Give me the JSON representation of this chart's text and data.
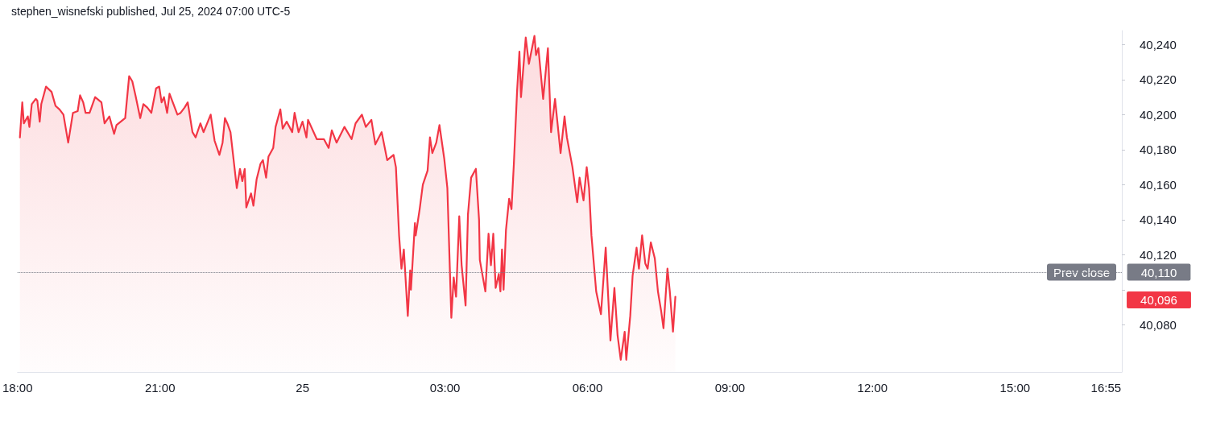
{
  "chart_data": {
    "type": "area",
    "title": "stephen_wisnefski published, Jul 25, 2024 07:00 UTC-5",
    "x": [
      "2024-07-24T18:03",
      "2024-07-24T18:06",
      "2024-07-24T18:08",
      "2024-07-24T18:13",
      "2024-07-24T18:15",
      "2024-07-24T18:18",
      "2024-07-24T18:23",
      "2024-07-24T18:25",
      "2024-07-24T18:28",
      "2024-07-24T18:30",
      "2024-07-24T18:36",
      "2024-07-24T18:43",
      "2024-07-24T18:48",
      "2024-07-24T18:53",
      "2024-07-24T18:58",
      "2024-07-24T19:04",
      "2024-07-24T19:10",
      "2024-07-24T19:16",
      "2024-07-24T19:19",
      "2024-07-24T19:23",
      "2024-07-24T19:26",
      "2024-07-24T19:31",
      "2024-07-24T19:38",
      "2024-07-24T19:46",
      "2024-07-24T19:50",
      "2024-07-24T19:56",
      "2024-07-24T20:02",
      "2024-07-24T20:05",
      "2024-07-24T20:16",
      "2024-07-24T20:21",
      "2024-07-24T20:25",
      "2024-07-24T20:29",
      "2024-07-24T20:35",
      "2024-07-24T20:39",
      "2024-07-24T20:44",
      "2024-07-24T20:49",
      "2024-07-24T20:55",
      "2024-07-24T20:59",
      "2024-07-24T21:02",
      "2024-07-24T21:05",
      "2024-07-24T21:09",
      "2024-07-24T21:12",
      "2024-07-24T21:17",
      "2024-07-24T21:22",
      "2024-07-24T21:26",
      "2024-07-24T21:31",
      "2024-07-24T21:35",
      "2024-07-24T21:41",
      "2024-07-24T21:45",
      "2024-07-24T21:51",
      "2024-07-24T21:55",
      "2024-07-24T22:04",
      "2024-07-24T22:09",
      "2024-07-24T22:15",
      "2024-07-24T22:19",
      "2024-07-24T22:22",
      "2024-07-24T22:25",
      "2024-07-24T22:29",
      "2024-07-24T22:32",
      "2024-07-24T22:37",
      "2024-07-24T22:41",
      "2024-07-24T22:44",
      "2024-07-24T22:47",
      "2024-07-24T22:49",
      "2024-07-24T22:55",
      "2024-07-24T22:58",
      "2024-07-24T23:02",
      "2024-07-24T23:07",
      "2024-07-24T23:10",
      "2024-07-24T23:14",
      "2024-07-24T23:17",
      "2024-07-24T23:23",
      "2024-07-24T23:26",
      "2024-07-24T23:32",
      "2024-07-24T23:35",
      "2024-07-24T23:40",
      "2024-07-24T23:47",
      "2024-07-24T23:50",
      "2024-07-24T23:55",
      "2024-07-25T00:00",
      "2024-07-25T00:05",
      "2024-07-25T00:07",
      "2024-07-25T00:18",
      "2024-07-25T00:27",
      "2024-07-25T00:33",
      "2024-07-25T00:37",
      "2024-07-25T00:43",
      "2024-07-25T00:53",
      "2024-07-25T01:02",
      "2024-07-25T01:07",
      "2024-07-25T01:15",
      "2024-07-25T01:20",
      "2024-07-25T01:27",
      "2024-07-25T01:32",
      "2024-07-25T01:40",
      "2024-07-25T01:47",
      "2024-07-25T01:55",
      "2024-07-25T01:58",
      "2024-07-25T02:02",
      "2024-07-25T02:05",
      "2024-07-25T02:08",
      "2024-07-25T02:13",
      "2024-07-25T02:16",
      "2024-07-25T02:17",
      "2024-07-25T02:22",
      "2024-07-25T02:23",
      "2024-07-25T02:28",
      "2024-07-25T02:32",
      "2024-07-25T02:38",
      "2024-07-25T02:41",
      "2024-07-25T02:44",
      "2024-07-25T02:49",
      "2024-07-25T02:53",
      "2024-07-25T02:59",
      "2024-07-25T03:03",
      "2024-07-25T03:08",
      "2024-07-25T03:11",
      "2024-07-25T03:14",
      "2024-07-25T03:18",
      "2024-07-25T03:21",
      "2024-07-25T03:26",
      "2024-07-25T03:29",
      "2024-07-25T03:33",
      "2024-07-25T03:39",
      "2024-07-25T03:43",
      "2024-07-25T03:44",
      "2024-07-25T03:51",
      "2024-07-25T03:55",
      "2024-07-25T03:58",
      "2024-07-25T04:01",
      "2024-07-25T04:04",
      "2024-07-25T04:08",
      "2024-07-25T04:10",
      "2024-07-25T04:12",
      "2024-07-25T04:14",
      "2024-07-25T04:17",
      "2024-07-25T04:21",
      "2024-07-25T04:24",
      "2024-07-25T04:27",
      "2024-07-25T04:31",
      "2024-07-25T04:34",
      "2024-07-25T04:36",
      "2024-07-25T04:39",
      "2024-07-25T04:42",
      "2024-07-25T04:46",
      "2024-07-25T04:53",
      "2024-07-25T04:55",
      "2024-07-25T04:58",
      "2024-07-25T05:04",
      "2024-07-25T05:10",
      "2024-07-25T05:14",
      "2024-07-25T05:19",
      "2024-07-25T05:26",
      "2024-07-25T05:31",
      "2024-07-25T05:34",
      "2024-07-25T05:41",
      "2024-07-25T05:47",
      "2024-07-25T05:50",
      "2024-07-25T05:55",
      "2024-07-25T05:59",
      "2024-07-25T06:02",
      "2024-07-25T06:05",
      "2024-07-25T06:11",
      "2024-07-25T06:17",
      "2024-07-25T06:23",
      "2024-07-25T06:29",
      "2024-07-25T06:34",
      "2024-07-25T06:38",
      "2024-07-25T06:42",
      "2024-07-25T06:47",
      "2024-07-25T06:49",
      "2024-07-25T06:54",
      "2024-07-25T06:57",
      "2024-07-25T07:02",
      "2024-07-25T07:05",
      "2024-07-25T07:09",
      "2024-07-25T07:13",
      "2024-07-25T07:16",
      "2024-07-25T07:20",
      "2024-07-25T07:25",
      "2024-07-25T07:29",
      "2024-07-25T07:33",
      "2024-07-25T07:36",
      "2024-07-25T07:41",
      "2024-07-25T07:44",
      "2024-07-25T07:48",
      "2024-07-25T07:51"
    ],
    "values": [
      40187,
      40207,
      40195,
      40199,
      40193,
      40206,
      40209,
      40208,
      40196,
      40206,
      40216,
      40213,
      40205,
      40203,
      40200,
      40184,
      40201,
      40202,
      40211,
      40207,
      40201,
      40201,
      40210,
      40207,
      40195,
      40199,
      40189,
      40194,
      40198,
      40222,
      40219,
      40211,
      40198,
      40206,
      40204,
      40201,
      40215,
      40216,
      40207,
      40210,
      40201,
      40212,
      40206,
      40200,
      40201,
      40204,
      40207,
      40190,
      40187,
      40195,
      40190,
      40200,
      40185,
      40177,
      40184,
      40198,
      40195,
      40190,
      40178,
      40158,
      40169,
      40162,
      40169,
      40147,
      40155,
      40148,
      40163,
      40172,
      40174,
      40164,
      40176,
      40181,
      40193,
      40203,
      40192,
      40196,
      40190,
      40201,
      40190,
      40196,
      40187,
      40197,
      40186,
      40186,
      40181,
      40191,
      40184,
      40193,
      40186,
      40195,
      40200,
      40193,
      40197,
      40183,
      40190,
      40174,
      40177,
      40170,
      40131,
      40112,
      40123,
      40085,
      40111,
      40100,
      40138,
      40131,
      40146,
      40160,
      40168,
      40187,
      40178,
      40184,
      40194,
      40175,
      40158,
      40084,
      40107,
      40096,
      40142,
      40114,
      40091,
      40143,
      40164,
      40169,
      40140,
      40117,
      40099,
      40132,
      40114,
      40132,
      40101,
      40109,
      40099,
      40123,
      40100,
      40134,
      40152,
      40146,
      40172,
      40213,
      40236,
      40210,
      40227,
      40244,
      40229,
      40245,
      40234,
      40238,
      40209,
      40238,
      40190,
      40209,
      40178,
      40199,
      40187,
      40170,
      40150,
      40164,
      40151,
      40170,
      40158,
      40131,
      40099,
      40086,
      40124,
      40071,
      40101,
      40074,
      40060,
      40076,
      40060,
      40085,
      40108,
      40124,
      40112,
      40131,
      40115,
      40112,
      40127,
      40118,
      40099,
      40088,
      40078,
      40112,
      40099,
      40076,
      40096
    ],
    "color": "#f23645",
    "xlim": [
      "2024-07-24T18:00",
      "2024-07-25T17:15"
    ],
    "xticks": [
      {
        "value": "2024-07-24T18:00",
        "label": "18:00"
      },
      {
        "value": "2024-07-24T21:00",
        "label": "21:00"
      },
      {
        "value": "2024-07-25T00:00",
        "label": "25"
      },
      {
        "value": "2024-07-25T03:00",
        "label": "03:00"
      },
      {
        "value": "2024-07-25T06:00",
        "label": "06:00"
      },
      {
        "value": "2024-07-25T09:00",
        "label": "09:00"
      },
      {
        "value": "2024-07-25T12:00",
        "label": "12:00"
      },
      {
        "value": "2024-07-25T15:00",
        "label": "15:00"
      },
      {
        "value": "2024-07-25T16:55",
        "label": "16:55"
      }
    ],
    "ylim": [
      40053,
      40248
    ],
    "yticks": [
      {
        "value": 40080,
        "label": "40,080"
      },
      {
        "value": 40100,
        "label": null
      },
      {
        "value": 40120,
        "label": "40,120"
      },
      {
        "value": 40140,
        "label": "40,140"
      },
      {
        "value": 40160,
        "label": "40,160"
      },
      {
        "value": 40180,
        "label": "40,180"
      },
      {
        "value": 40200,
        "label": "40,200"
      },
      {
        "value": 40220,
        "label": "40,220"
      },
      {
        "value": 40240,
        "label": "40,240"
      }
    ],
    "ref_lines": [
      {
        "axis": "y",
        "value": 40110,
        "label": "Prev close",
        "color": "#787b86",
        "line_style": "dotted"
      }
    ],
    "annotations": [
      "40,110",
      "40,096"
    ],
    "line_style": "solid"
  }
}
